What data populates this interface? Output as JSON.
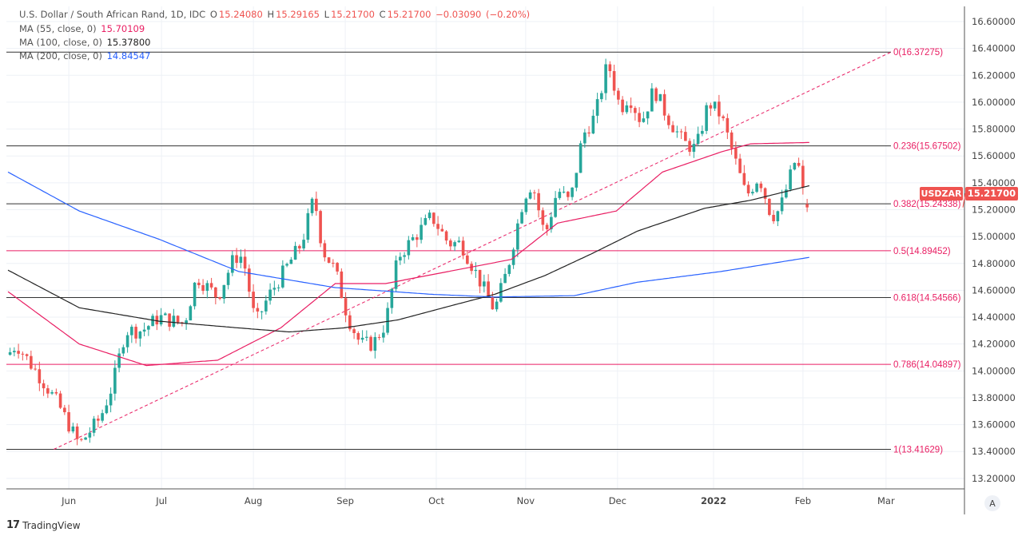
{
  "header": {
    "symbol_title": "U.S. Dollar / South African Rand, 1D, IDC",
    "open_label": "O",
    "open": "15.24080",
    "high_label": "H",
    "high": "15.29165",
    "low_label": "L",
    "low": "15.21700",
    "close_label": "C",
    "close": "15.21700",
    "change": "−0.03090",
    "change_pct": "(−0.20%)"
  },
  "indicators": [
    {
      "label": "MA (55, close, 0)",
      "value": "15.70109",
      "color": "#e91e63"
    },
    {
      "label": "MA (100, close, 0)",
      "value": "15.37800",
      "color": "#222222"
    },
    {
      "label": "MA (200, close, 0)",
      "value": "14.84547",
      "color": "#2962ff"
    }
  ],
  "price_tag": {
    "symbol": "USDZAR",
    "price": "15.21700",
    "color": "#ef5350"
  },
  "autoscale_label": "A",
  "branding": "TradingView",
  "chart_data": {
    "type": "candlestick",
    "title": "U.S. Dollar / South African Rand, 1D",
    "ylim": [
      13.1,
      16.72
    ],
    "y_ticks": [
      "16.60000",
      "16.40000",
      "16.20000",
      "16.00000",
      "15.80000",
      "15.60000",
      "15.40000",
      "15.20000",
      "15.00000",
      "14.80000",
      "14.60000",
      "14.40000",
      "14.20000",
      "14.00000",
      "13.80000",
      "13.60000",
      "13.40000",
      "13.20000"
    ],
    "x_ticks": [
      {
        "label": "Jun",
        "bar": 14.5
      },
      {
        "label": "Jul",
        "bar": 36.6
      },
      {
        "label": "Aug",
        "bar": 58.5
      },
      {
        "label": "Sep",
        "bar": 80.4
      },
      {
        "label": "Oct",
        "bar": 102.1
      },
      {
        "label": "Nov",
        "bar": 123.4
      },
      {
        "label": "Dec",
        "bar": 145.3
      },
      {
        "label": "2022",
        "bar": 168.2
      },
      {
        "label": "Feb",
        "bar": 189.5
      },
      {
        "label": "Mar",
        "bar": 209.3
      }
    ],
    "bars_total": 191,
    "close_path": [
      [
        0,
        14.12
      ],
      [
        2,
        14.2
      ],
      [
        8,
        13.94
      ],
      [
        12,
        13.75
      ],
      [
        17,
        13.45
      ],
      [
        22,
        13.65
      ],
      [
        25,
        13.9
      ],
      [
        28,
        14.3
      ],
      [
        32,
        14.3
      ],
      [
        36,
        14.4
      ],
      [
        42,
        14.35
      ],
      [
        45,
        14.7
      ],
      [
        50,
        14.55
      ],
      [
        54,
        14.85
      ],
      [
        56,
        14.85
      ],
      [
        59,
        14.35
      ],
      [
        62,
        14.55
      ],
      [
        66,
        14.75
      ],
      [
        70,
        14.95
      ],
      [
        73,
        15.3
      ],
      [
        75,
        14.9
      ],
      [
        78,
        14.75
      ],
      [
        81,
        14.4
      ],
      [
        84,
        14.2
      ],
      [
        87,
        14.2
      ],
      [
        90,
        14.35
      ],
      [
        93,
        14.85
      ],
      [
        97,
        15.0
      ],
      [
        101,
        15.15
      ],
      [
        105,
        14.95
      ],
      [
        108,
        14.95
      ],
      [
        112,
        14.7
      ],
      [
        116,
        14.45
      ],
      [
        119,
        14.75
      ],
      [
        123,
        15.3
      ],
      [
        125,
        15.4
      ],
      [
        128,
        15.0
      ],
      [
        131,
        15.35
      ],
      [
        134,
        15.25
      ],
      [
        137,
        15.75
      ],
      [
        140,
        15.9
      ],
      [
        143,
        16.3
      ],
      [
        146,
        15.95
      ],
      [
        148,
        16.05
      ],
      [
        151,
        15.85
      ],
      [
        154,
        16.1
      ],
      [
        157,
        15.9
      ],
      [
        161,
        15.7
      ],
      [
        164,
        15.65
      ],
      [
        167,
        16.0
      ],
      [
        170,
        15.9
      ],
      [
        173,
        15.6
      ],
      [
        176,
        15.3
      ],
      [
        179,
        15.45
      ],
      [
        182,
        15.15
      ],
      [
        184,
        15.2
      ],
      [
        187,
        15.5
      ],
      [
        188,
        15.6
      ],
      [
        190,
        15.24
      ],
      [
        191,
        15.217
      ]
    ],
    "series": [
      {
        "name": "MA 55",
        "color": "#e91e63",
        "path": [
          [
            0,
            14.59
          ],
          [
            17,
            14.2
          ],
          [
            33,
            14.04
          ],
          [
            50,
            14.08
          ],
          [
            65,
            14.32
          ],
          [
            78,
            14.65
          ],
          [
            90,
            14.65
          ],
          [
            105,
            14.74
          ],
          [
            120,
            14.83
          ],
          [
            131,
            15.1
          ],
          [
            145,
            15.19
          ],
          [
            156,
            15.48
          ],
          [
            170,
            15.63
          ],
          [
            177,
            15.69
          ],
          [
            191,
            15.7
          ]
        ]
      },
      {
        "name": "MA 100",
        "color": "#222222",
        "path": [
          [
            0,
            14.75
          ],
          [
            17,
            14.47
          ],
          [
            36,
            14.37
          ],
          [
            55,
            14.32
          ],
          [
            67,
            14.29
          ],
          [
            80,
            14.32
          ],
          [
            93,
            14.38
          ],
          [
            105,
            14.48
          ],
          [
            116,
            14.57
          ],
          [
            128,
            14.71
          ],
          [
            139,
            14.87
          ],
          [
            150,
            15.04
          ],
          [
            166,
            15.21
          ],
          [
            177,
            15.27
          ],
          [
            191,
            15.378
          ]
        ]
      },
      {
        "name": "MA 200",
        "color": "#2962ff",
        "path": [
          [
            0,
            15.48
          ],
          [
            17,
            15.19
          ],
          [
            36,
            14.98
          ],
          [
            55,
            14.74
          ],
          [
            78,
            14.62
          ],
          [
            101,
            14.57
          ],
          [
            116,
            14.55
          ],
          [
            135,
            14.56
          ],
          [
            150,
            14.66
          ],
          [
            170,
            14.74
          ],
          [
            191,
            14.845
          ]
        ]
      }
    ],
    "fibonacci": {
      "from": 13.41629,
      "to": 16.37275,
      "levels": [
        {
          "label": "0(16.37275)",
          "value": 16.37275,
          "color": "#333333"
        },
        {
          "label": "0.236(15.67502)",
          "value": 15.67502,
          "color": "#333333"
        },
        {
          "label": "0.382(15.24338)",
          "value": 15.24338,
          "color": "#333333"
        },
        {
          "label": "0.5(14.89452)",
          "value": 14.89452,
          "color": "#e91e63"
        },
        {
          "label": "0.618(14.54566)",
          "value": 14.54566,
          "color": "#333333"
        },
        {
          "label": "0.786(14.04897)",
          "value": 14.04897,
          "color": "#e91e63"
        },
        {
          "label": "1(13.41629)",
          "value": 13.41629,
          "color": "#333333"
        }
      ]
    },
    "colors": {
      "up": "#26a69a",
      "down": "#ef5350",
      "fib_label": "#e91e63"
    }
  }
}
